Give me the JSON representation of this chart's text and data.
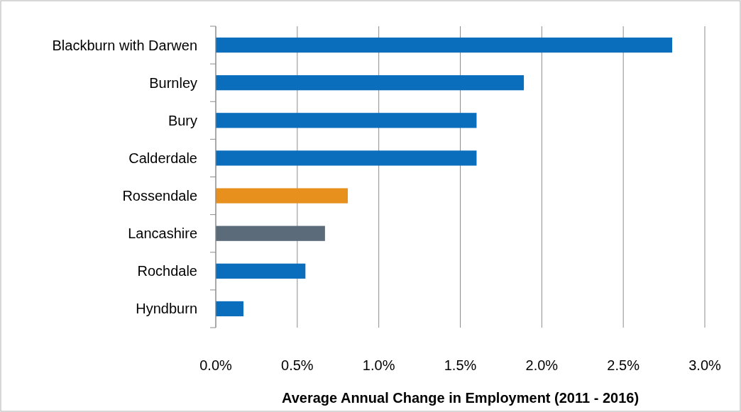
{
  "chart_data": {
    "type": "bar",
    "orientation": "horizontal",
    "xlabel": "Average Annual Change in Employment (2011 - 2016)",
    "categories": [
      "Blackburn with Darwen",
      "Burnley",
      "Bury",
      "Calderdale",
      "Rossendale",
      "Lancashire",
      "Rochdale",
      "Hyndburn"
    ],
    "values": [
      2.8,
      1.89,
      1.6,
      1.6,
      0.81,
      0.67,
      0.55,
      0.17
    ],
    "colors": [
      "#0a6ebd",
      "#0a6ebd",
      "#0a6ebd",
      "#0a6ebd",
      "#e8901e",
      "#5b6b79",
      "#0a6ebd",
      "#0a6ebd"
    ],
    "xlim": [
      0,
      3
    ],
    "xticks": [
      {
        "value": 0,
        "label": "0.0%"
      },
      {
        "value": 0.5,
        "label": "0.5%"
      },
      {
        "value": 1,
        "label": "1.0%"
      },
      {
        "value": 1.5,
        "label": "1.5%"
      },
      {
        "value": 2,
        "label": "2.0%"
      },
      {
        "value": 2.5,
        "label": "2.5%"
      },
      {
        "value": 3,
        "label": "3.0%"
      }
    ],
    "grid": "x"
  }
}
